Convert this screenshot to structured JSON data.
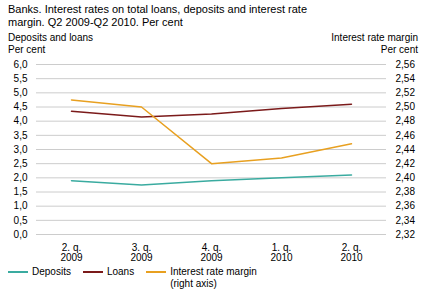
{
  "chart_data": {
    "type": "line",
    "title": "Banks. Interest rates on total loans, deposits and interest rate\nmargin. Q2 2009-Q2 2010. Per cent",
    "ylabel": "Deposits and loans\nPer cent",
    "y2label": "Interest rate margin\nPer cent",
    "categories": [
      "2. q.\n2009",
      "3. q.\n2009",
      "4. q.\n2009",
      "1. q.\n2010",
      "2. q.\n2010"
    ],
    "series": [
      {
        "name": "Deposits",
        "color": "#3aaba0",
        "values": [
          1.9,
          1.75,
          1.9,
          2.0,
          2.1
        ]
      },
      {
        "name": "Loans",
        "color": "#7b1a1a",
        "values": [
          4.35,
          4.15,
          4.25,
          4.45,
          4.6
        ]
      },
      {
        "name": "Interest rate margin\n(right axis)",
        "color": "#e8a020",
        "values": [
          2.51,
          2.5,
          2.42,
          2.428,
          2.448
        ],
        "axis": "y2"
      }
    ],
    "ylim": [
      0.0,
      6.0
    ],
    "yticks": [
      {
        "value": 0.0,
        "label": "0,0"
      },
      {
        "value": 0.5,
        "label": "0,5"
      },
      {
        "value": 1.0,
        "label": "1,0"
      },
      {
        "value": 1.5,
        "label": "1,5"
      },
      {
        "value": 2.0,
        "label": "2,0"
      },
      {
        "value": 2.5,
        "label": "2,5"
      },
      {
        "value": 3.0,
        "label": "3,0"
      },
      {
        "value": 3.5,
        "label": "3,5"
      },
      {
        "value": 4.0,
        "label": "4,0"
      },
      {
        "value": 4.5,
        "label": "4,5"
      },
      {
        "value": 5.0,
        "label": "5,0"
      },
      {
        "value": 5.5,
        "label": "5,5"
      },
      {
        "value": 6.0,
        "label": "6,0"
      }
    ],
    "y2lim": [
      2.32,
      2.56
    ],
    "y2ticks": [
      {
        "value": 2.32,
        "label": "2,32"
      },
      {
        "value": 2.34,
        "label": "2,34"
      },
      {
        "value": 2.36,
        "label": "2,36"
      },
      {
        "value": 2.38,
        "label": "2,38"
      },
      {
        "value": 2.4,
        "label": "2,40"
      },
      {
        "value": 2.42,
        "label": "2,42"
      },
      {
        "value": 2.44,
        "label": "2,44"
      },
      {
        "value": 2.46,
        "label": "2,46"
      },
      {
        "value": 2.48,
        "label": "2,48"
      },
      {
        "value": 2.5,
        "label": "2,50"
      },
      {
        "value": 2.52,
        "label": "2,52"
      },
      {
        "value": 2.54,
        "label": "2,54"
      },
      {
        "value": 2.56,
        "label": "2,56"
      }
    ],
    "grid": true,
    "legend": "bottom"
  }
}
